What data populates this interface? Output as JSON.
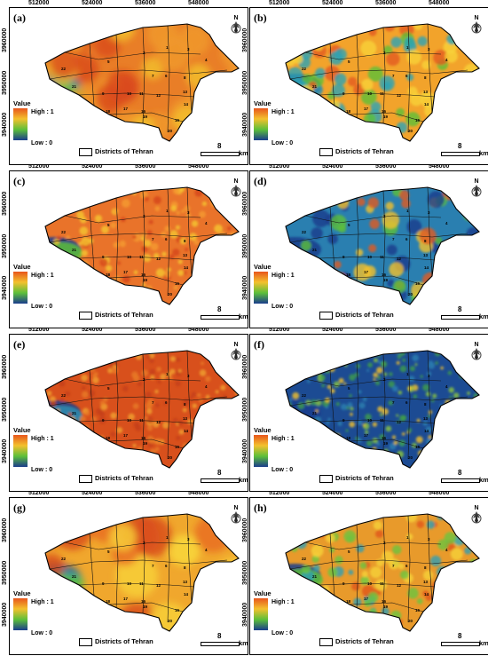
{
  "top_ticks": [
    "512000",
    "524000",
    "536000",
    "548000"
  ],
  "y_ticks": [
    "3960000",
    "3950000",
    "3940000"
  ],
  "legend": {
    "title": "Value",
    "high": "High : 1",
    "low": "Low : 0"
  },
  "districts_label": "Districts of Tehran",
  "scale": {
    "value": "8",
    "unit": "km"
  },
  "colors": {
    "high": "#e8551c",
    "mid": "#f3c12d",
    "low": "#1a3c8c",
    "green": "#5cbf3a"
  },
  "panels": [
    {
      "label": "(a)",
      "style": "smooth-orange"
    },
    {
      "label": "(b)",
      "style": "spotty-orange"
    },
    {
      "label": "(c)",
      "style": "dense-orange"
    },
    {
      "label": "(d)",
      "style": "blue-dominant"
    },
    {
      "label": "(e)",
      "style": "red-dense"
    },
    {
      "label": "(f)",
      "style": "blue-green"
    },
    {
      "label": "(g)",
      "style": "smooth-gradient"
    },
    {
      "label": "(h)",
      "style": "spotty-mixed"
    }
  ]
}
